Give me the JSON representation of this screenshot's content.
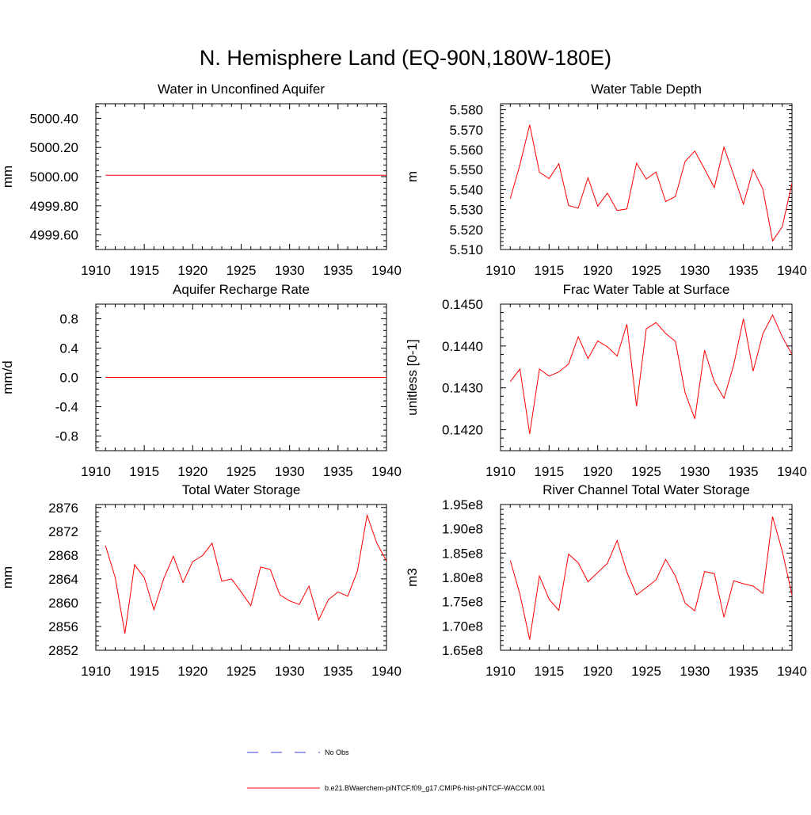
{
  "figure_title": "N. Hemisphere Land (EQ-90N,180W-180E)",
  "legend": {
    "entries": [
      {
        "label": "No Obs",
        "color": "#3b3bd0",
        "style": "dashed"
      },
      {
        "label": "b.e21.BWaerchem-piNTCF.f09_g17.CMIP6-hist-piNTCF-WACCM.001",
        "color": "#ff0000",
        "style": "solid"
      }
    ]
  },
  "series_color": "#ff0000",
  "chart_data": [
    {
      "type": "line",
      "title": "Water in Unconfined Aquifer",
      "ylabel": "mm",
      "xlim": [
        1910,
        1940
      ],
      "ylim": [
        4999.5,
        5000.5
      ],
      "xticks": [
        1910,
        1915,
        1920,
        1925,
        1930,
        1935,
        1940
      ],
      "yticks": [
        4999.6,
        4999.8,
        5000.0,
        5000.2,
        5000.4
      ],
      "ytick_labels": [
        "4999.60",
        "4999.80",
        "5000.00",
        "5000.20",
        "5000.40"
      ],
      "x": [
        1911,
        1912,
        1913,
        1914,
        1915,
        1916,
        1917,
        1918,
        1919,
        1920,
        1921,
        1922,
        1923,
        1924,
        1925,
        1926,
        1927,
        1928,
        1929,
        1930,
        1931,
        1932,
        1933,
        1934,
        1935,
        1936,
        1937,
        1938,
        1939,
        1940
      ],
      "y": [
        5000.01,
        5000.01,
        5000.01,
        5000.01,
        5000.01,
        5000.01,
        5000.01,
        5000.01,
        5000.01,
        5000.01,
        5000.01,
        5000.01,
        5000.01,
        5000.01,
        5000.01,
        5000.01,
        5000.01,
        5000.01,
        5000.01,
        5000.01,
        5000.01,
        5000.01,
        5000.01,
        5000.01,
        5000.01,
        5000.01,
        5000.01,
        5000.01,
        5000.01,
        5000.01
      ]
    },
    {
      "type": "line",
      "title": "Water Table Depth",
      "ylabel": "m",
      "xlim": [
        1910,
        1940
      ],
      "ylim": [
        5.51,
        5.583
      ],
      "xticks": [
        1910,
        1915,
        1920,
        1925,
        1930,
        1935,
        1940
      ],
      "yticks": [
        5.51,
        5.52,
        5.53,
        5.54,
        5.55,
        5.56,
        5.57,
        5.58
      ],
      "ytick_labels": [
        "5.510",
        "5.520",
        "5.530",
        "5.540",
        "5.550",
        "5.560",
        "5.570",
        "5.580"
      ],
      "x": [
        1911,
        1912,
        1913,
        1914,
        1915,
        1916,
        1917,
        1918,
        1919,
        1920,
        1921,
        1922,
        1923,
        1924,
        1925,
        1926,
        1927,
        1928,
        1929,
        1930,
        1931,
        1932,
        1933,
        1934,
        1935,
        1936,
        1937,
        1938,
        1939,
        1940
      ],
      "y": [
        5.5355,
        5.5525,
        5.5725,
        5.5487,
        5.5455,
        5.553,
        5.532,
        5.5307,
        5.546,
        5.5317,
        5.5382,
        5.5295,
        5.5303,
        5.5533,
        5.5453,
        5.5488,
        5.534,
        5.5365,
        5.5542,
        5.5593,
        5.5503,
        5.541,
        5.5613,
        5.5473,
        5.5327,
        5.5501,
        5.5403,
        5.5143,
        5.5213,
        5.5433
      ]
    },
    {
      "type": "line",
      "title": "Aquifer Recharge Rate",
      "ylabel": "mm/d",
      "xlim": [
        1910,
        1940
      ],
      "ylim": [
        -1.0,
        1.0
      ],
      "xticks": [
        1910,
        1915,
        1920,
        1925,
        1930,
        1935,
        1940
      ],
      "yticks": [
        -0.8,
        -0.4,
        0.0,
        0.4,
        0.8
      ],
      "ytick_labels": [
        "-0.8",
        "-0.4",
        "0.0",
        "0.4",
        "0.8"
      ],
      "x": [
        1911,
        1912,
        1913,
        1914,
        1915,
        1916,
        1917,
        1918,
        1919,
        1920,
        1921,
        1922,
        1923,
        1924,
        1925,
        1926,
        1927,
        1928,
        1929,
        1930,
        1931,
        1932,
        1933,
        1934,
        1935,
        1936,
        1937,
        1938,
        1939,
        1940
      ],
      "y": [
        0,
        0,
        0,
        0,
        0,
        0,
        0,
        0,
        0,
        0,
        0,
        0,
        0,
        0,
        0,
        0,
        0,
        0,
        0,
        0,
        0,
        0,
        0,
        0,
        0,
        0,
        0,
        0,
        0,
        0
      ]
    },
    {
      "type": "line",
      "title": "Frac Water Table at Surface",
      "ylabel": "unitless [0-1]",
      "xlim": [
        1910,
        1940
      ],
      "ylim": [
        0.1415,
        0.145
      ],
      "xticks": [
        1910,
        1915,
        1920,
        1925,
        1930,
        1935,
        1940
      ],
      "yticks": [
        0.142,
        0.143,
        0.144,
        0.145
      ],
      "ytick_labels": [
        "0.1420",
        "0.1430",
        "0.1440",
        "0.1450"
      ],
      "x": [
        1911,
        1912,
        1913,
        1914,
        1915,
        1916,
        1917,
        1918,
        1919,
        1920,
        1921,
        1922,
        1923,
        1924,
        1925,
        1926,
        1927,
        1928,
        1929,
        1930,
        1931,
        1932,
        1933,
        1934,
        1935,
        1936,
        1937,
        1938,
        1939,
        1940
      ],
      "y": [
        0.14315,
        0.14345,
        0.1419,
        0.14345,
        0.14328,
        0.14338,
        0.14357,
        0.14422,
        0.1437,
        0.14412,
        0.14398,
        0.14376,
        0.14452,
        0.14256,
        0.14441,
        0.14456,
        0.1443,
        0.14411,
        0.14288,
        0.14226,
        0.1439,
        0.14315,
        0.14275,
        0.14355,
        0.14465,
        0.1434,
        0.14429,
        0.14474,
        0.14422,
        0.1438
      ]
    },
    {
      "type": "line",
      "title": "Total Water Storage",
      "ylabel": "mm",
      "xlim": [
        1910,
        1940
      ],
      "ylim": [
        2852,
        2876.5
      ],
      "xticks": [
        1910,
        1915,
        1920,
        1925,
        1930,
        1935,
        1940
      ],
      "yticks": [
        2852,
        2856,
        2860,
        2864,
        2868,
        2872,
        2876
      ],
      "ytick_labels": [
        "2852",
        "2856",
        "2860",
        "2864",
        "2868",
        "2872",
        "2876"
      ],
      "x": [
        1911,
        1912,
        1913,
        1914,
        1915,
        1916,
        1917,
        1918,
        1919,
        1920,
        1921,
        1922,
        1923,
        1924,
        1925,
        1926,
        1927,
        1928,
        1929,
        1930,
        1931,
        1932,
        1933,
        1934,
        1935,
        1936,
        1937,
        1938,
        1939,
        1940
      ],
      "y": [
        2869.6,
        2864.2,
        2854.8,
        2866.4,
        2864.2,
        2858.8,
        2864.0,
        2867.8,
        2863.4,
        2866.9,
        2867.9,
        2870.0,
        2863.6,
        2864.0,
        2861.8,
        2859.5,
        2866.0,
        2865.6,
        2861.3,
        2860.3,
        2859.7,
        2862.8,
        2857.1,
        2860.5,
        2861.8,
        2861.1,
        2865.3,
        2874.7,
        2870.0,
        2867.0
      ]
    },
    {
      "type": "line",
      "title": "River Channel Total Water Storage",
      "ylabel": "m3",
      "xlim": [
        1910,
        1940
      ],
      "ylim": [
        165000000,
        195000000
      ],
      "xticks": [
        1910,
        1915,
        1920,
        1925,
        1930,
        1935,
        1940
      ],
      "yticks": [
        165000000,
        170000000,
        175000000,
        180000000,
        185000000,
        190000000,
        195000000
      ],
      "ytick_labels": [
        "1.65e8",
        "1.70e8",
        "1.75e8",
        "1.80e8",
        "1.85e8",
        "1.90e8",
        "1.95e8"
      ],
      "x": [
        1911,
        1912,
        1913,
        1914,
        1915,
        1916,
        1917,
        1918,
        1919,
        1920,
        1921,
        1922,
        1923,
        1924,
        1925,
        1926,
        1927,
        1928,
        1929,
        1930,
        1931,
        1932,
        1933,
        1934,
        1935,
        1936,
        1937,
        1938,
        1939,
        1940
      ],
      "y": [
        183500000,
        176500000,
        167200000,
        180300000,
        175500000,
        173200000,
        184800000,
        183000000,
        179100000,
        181000000,
        182900000,
        187600000,
        181100000,
        176400000,
        177900000,
        179500000,
        183700000,
        180300000,
        174700000,
        173100000,
        181200000,
        180800000,
        171800000,
        179300000,
        178700000,
        178200000,
        176700000,
        192500000,
        185400000,
        176400000
      ]
    }
  ]
}
